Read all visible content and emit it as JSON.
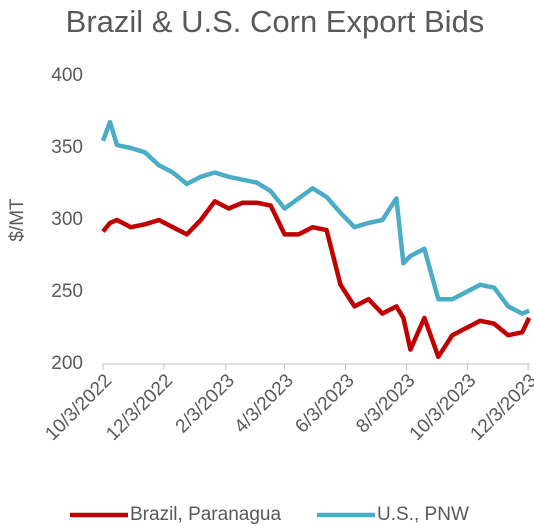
{
  "chart_data": {
    "type": "line",
    "title": "Brazil & U.S. Corn Export Bids",
    "y_label": "$/MT",
    "x": [
      "10/3/2022",
      "10/10/2022",
      "10/17/2022",
      "10/31/2022",
      "11/14/2022",
      "11/28/2022",
      "12/12/2022",
      "12/26/2022",
      "1/9/2023",
      "1/23/2023",
      "2/6/2023",
      "2/20/2023",
      "3/6/2023",
      "3/20/2023",
      "4/3/2023",
      "4/17/2023",
      "5/1/2023",
      "5/15/2023",
      "5/29/2023",
      "6/12/2023",
      "6/26/2023",
      "7/10/2023",
      "7/24/2023",
      "7/31/2023",
      "8/7/2023",
      "8/21/2023",
      "9/4/2023",
      "9/18/2023",
      "10/2/2023",
      "10/16/2023",
      "10/30/2023",
      "11/13/2023",
      "11/27/2023",
      "12/4/2023"
    ],
    "series": [
      {
        "name": "Brazil, Paranagua",
        "color": "#c00000",
        "values": [
          292,
          298,
          300,
          295,
          297,
          300,
          295,
          290,
          300,
          313,
          308,
          312,
          312,
          310,
          290,
          290,
          295,
          293,
          255,
          240,
          245,
          235,
          240,
          232,
          210,
          232,
          205,
          220,
          225,
          230,
          228,
          220,
          222,
          232
        ]
      },
      {
        "name": "U.S., PNW",
        "color": "#4bacc6",
        "values": [
          355,
          368,
          352,
          350,
          347,
          338,
          333,
          325,
          330,
          333,
          330,
          328,
          326,
          320,
          308,
          315,
          322,
          316,
          305,
          295,
          298,
          300,
          315,
          270,
          275,
          280,
          245,
          245,
          250,
          255,
          253,
          240,
          235,
          237
        ]
      }
    ],
    "xlim": [
      "10/3/2022",
      "12/5/2023"
    ],
    "xticks": [
      "10/3/2022",
      "12/3/2022",
      "2/3/2023",
      "4/3/2023",
      "6/3/2023",
      "8/3/2023",
      "10/3/2023",
      "12/3/2023"
    ],
    "ylim": [
      200,
      400
    ],
    "yticks": [
      200,
      250,
      300,
      350,
      400
    ],
    "legend": "bottom"
  }
}
